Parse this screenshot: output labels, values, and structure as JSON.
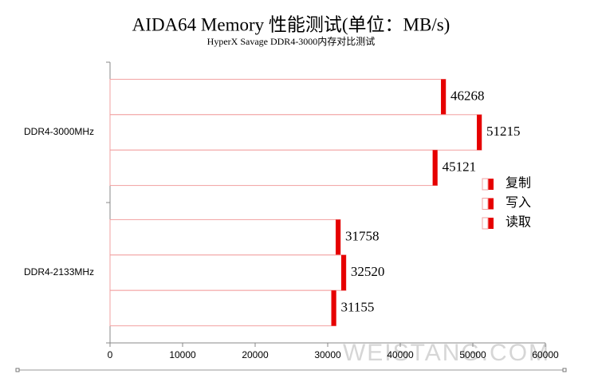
{
  "chart_data": {
    "type": "hbar",
    "title": "AIDA64 Memory 性能测试(单位：MB/s)",
    "subtitle": "HyperX Savage DDR4-3000内存对比测试",
    "categories": [
      "DDR4-3000MHz",
      "DDR4-2133MHz"
    ],
    "series": [
      {
        "name": "复制",
        "color": "#e60000",
        "values": [
          46268,
          31758
        ]
      },
      {
        "name": "写入",
        "color": "#e60000",
        "values": [
          51215,
          32520
        ]
      },
      {
        "name": "读取",
        "color": "#e60000",
        "values": [
          45121,
          31155
        ]
      }
    ],
    "xlim": [
      0,
      60000
    ],
    "xticks": [
      0,
      10000,
      20000,
      30000,
      40000,
      50000,
      60000
    ],
    "legend": "right",
    "watermark": "WEISTANG.COM"
  }
}
